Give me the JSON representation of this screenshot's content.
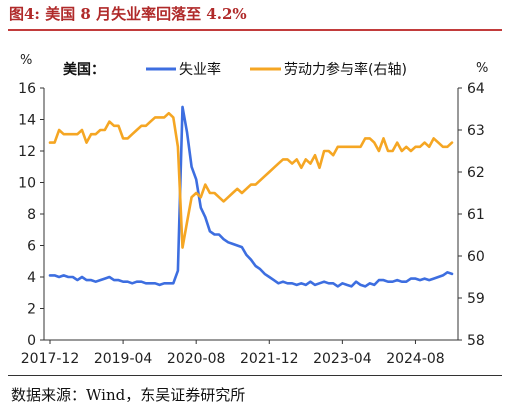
{
  "figure": {
    "title": "图4: 美国 8 月失业率回落至 4.2%",
    "source": "数据来源：Wind，东吴证券研究所"
  },
  "colors": {
    "unemployment": "#3d6ee0",
    "participation": "#f5a623",
    "title": "#b02a2a"
  },
  "chart_data": {
    "type": "line",
    "title": "",
    "legend": {
      "prefix": "美国：",
      "placement": "top"
    },
    "y_left_unit": "%",
    "y_right_unit": "%",
    "ylim_left": [
      0,
      16
    ],
    "ylim_right": [
      58,
      64
    ],
    "y_left_ticks": [
      0,
      2,
      4,
      6,
      8,
      10,
      12,
      14,
      16
    ],
    "y_right_ticks": [
      58,
      59,
      60,
      61,
      62,
      63,
      64
    ],
    "x_ticks": [
      "2017-12",
      "2019-04",
      "2020-08",
      "2021-12",
      "2023-04",
      "2024-08"
    ],
    "grid": false,
    "series": [
      {
        "name": "失业率",
        "axis": "left",
        "values": [
          4.1,
          4.1,
          4.0,
          4.1,
          4.0,
          4.0,
          3.8,
          4.0,
          3.8,
          3.8,
          3.7,
          3.8,
          3.9,
          4.0,
          3.8,
          3.8,
          3.7,
          3.7,
          3.6,
          3.7,
          3.7,
          3.6,
          3.6,
          3.6,
          3.5,
          3.6,
          3.6,
          3.6,
          4.4,
          14.8,
          13.2,
          11.0,
          10.2,
          8.4,
          7.8,
          6.9,
          6.7,
          6.7,
          6.4,
          6.2,
          6.1,
          6.0,
          5.9,
          5.4,
          5.1,
          4.7,
          4.5,
          4.2,
          4.0,
          3.8,
          3.6,
          3.7,
          3.6,
          3.6,
          3.5,
          3.6,
          3.5,
          3.7,
          3.5,
          3.6,
          3.7,
          3.6,
          3.6,
          3.4,
          3.6,
          3.5,
          3.4,
          3.7,
          3.5,
          3.4,
          3.6,
          3.5,
          3.8,
          3.8,
          3.7,
          3.7,
          3.8,
          3.7,
          3.7,
          3.9,
          3.9,
          3.8,
          3.9,
          3.8,
          3.9,
          4.0,
          4.1,
          4.3,
          4.2
        ]
      },
      {
        "name": "劳动力参与率(右轴)",
        "axis": "right",
        "values": [
          62.7,
          62.7,
          63.0,
          62.9,
          62.9,
          62.9,
          62.9,
          63.0,
          62.7,
          62.9,
          62.9,
          63.0,
          63.0,
          63.2,
          63.1,
          63.1,
          62.8,
          62.8,
          62.9,
          63.0,
          63.1,
          63.1,
          63.2,
          63.3,
          63.3,
          63.3,
          63.4,
          63.3,
          62.6,
          60.2,
          60.8,
          61.4,
          61.5,
          61.4,
          61.7,
          61.5,
          61.5,
          61.4,
          61.3,
          61.4,
          61.5,
          61.6,
          61.5,
          61.6,
          61.7,
          61.7,
          61.8,
          61.9,
          62.0,
          62.1,
          62.2,
          62.3,
          62.3,
          62.2,
          62.3,
          62.1,
          62.3,
          62.2,
          62.4,
          62.1,
          62.5,
          62.5,
          62.4,
          62.6,
          62.6,
          62.6,
          62.6,
          62.6,
          62.6,
          62.8,
          62.8,
          62.7,
          62.5,
          62.8,
          62.5,
          62.5,
          62.7,
          62.5,
          62.6,
          62.5,
          62.6,
          62.6,
          62.7,
          62.6,
          62.8,
          62.7,
          62.6,
          62.6,
          62.7
        ]
      }
    ]
  }
}
